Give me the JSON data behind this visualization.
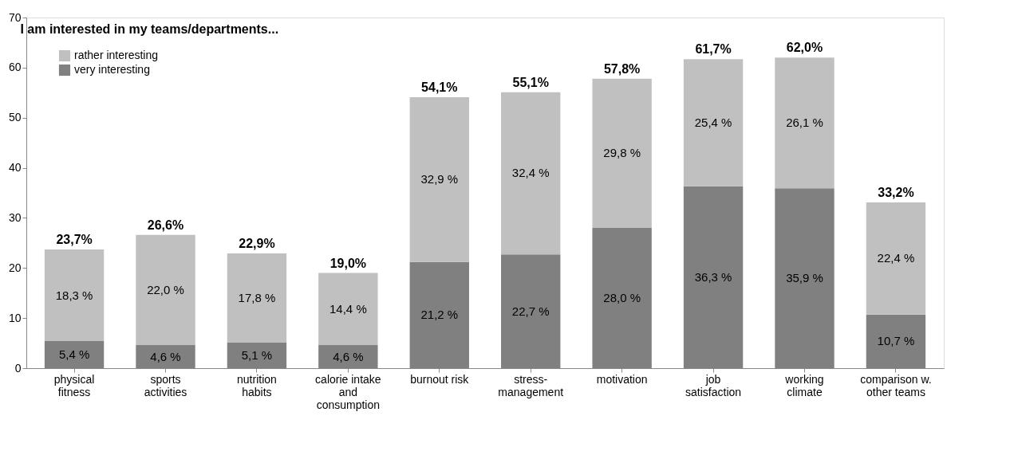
{
  "chart_data": {
    "type": "bar",
    "title": "I am interested in my teams/departments...",
    "stacked": true,
    "categories": [
      "physical fitness",
      "sports activities",
      "nutrition habits",
      "calorie intake and consumption",
      "burnout risk",
      "stress-management",
      "motivation",
      "job satisfaction",
      "working climate",
      "comparison w. other teams"
    ],
    "series": [
      {
        "name": "very interesting",
        "color": "#808080",
        "values": [
          5.4,
          4.6,
          5.1,
          4.6,
          21.2,
          22.7,
          28.0,
          36.3,
          35.9,
          10.7
        ],
        "value_labels": [
          "5,4 %",
          "4,6 %",
          "5,1 %",
          "4,6 %",
          "21,2 %",
          "22,7 %",
          "28,0 %",
          "36,3 %",
          "35,9 %",
          "10,7 %"
        ]
      },
      {
        "name": "rather interesting",
        "color": "#c0c0c0",
        "values": [
          18.3,
          22.0,
          17.8,
          14.4,
          32.9,
          32.4,
          29.8,
          25.4,
          26.1,
          22.4
        ],
        "value_labels": [
          "18,3 %",
          "22,0 %",
          "17,8 %",
          "14,4 %",
          "32,9 %",
          "32,4 %",
          "29,8 %",
          "25,4 %",
          "26,1 %",
          "22,4 %"
        ]
      }
    ],
    "totals": [
      "23,7%",
      "26,6%",
      "22,9%",
      "19,0%",
      "54,1%",
      "55,1%",
      "57,8%",
      "61,7%",
      "62,0%",
      "33,2%"
    ],
    "ylim": [
      0,
      70
    ],
    "yticks": [
      0,
      10,
      20,
      30,
      40,
      50,
      60,
      70
    ],
    "grid": false,
    "legend": "top left"
  }
}
